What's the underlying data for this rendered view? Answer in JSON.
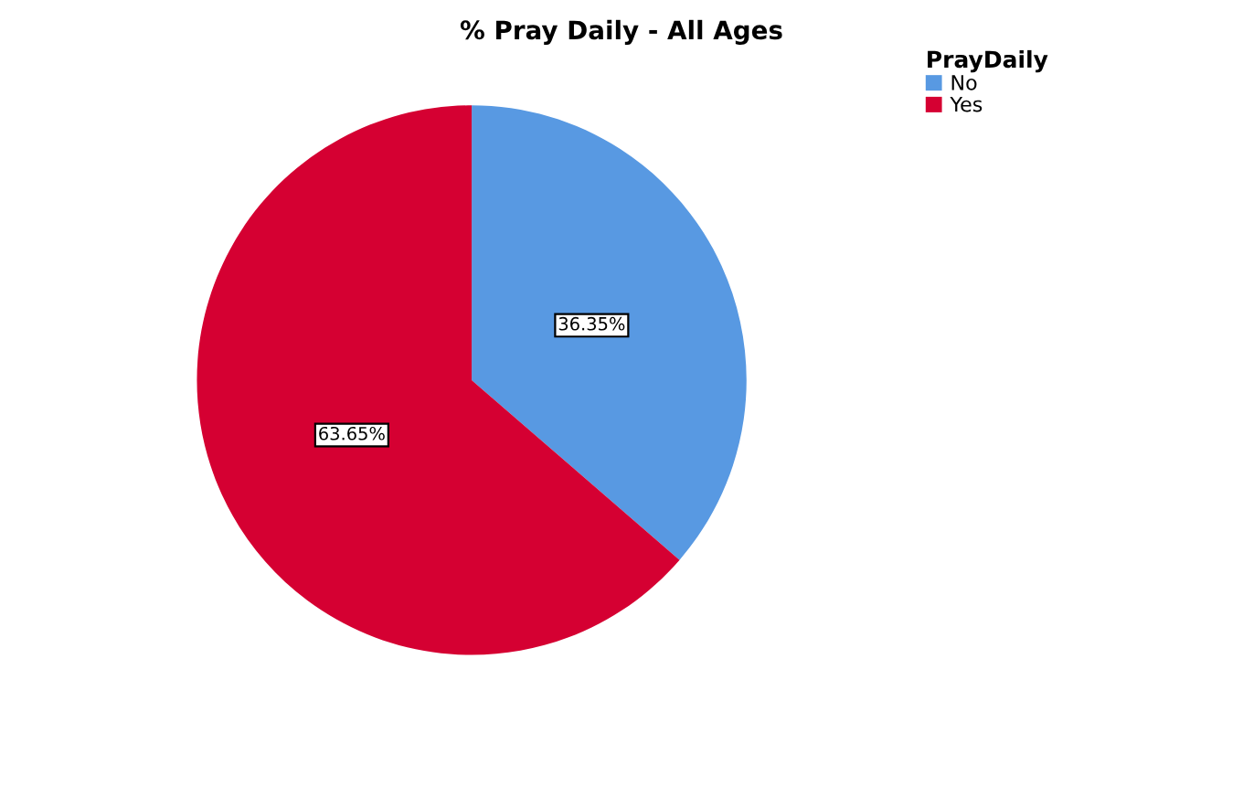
{
  "chart_data": {
    "type": "pie",
    "title": "% Pray Daily - All Ages",
    "legend_title": "PrayDaily",
    "categories": [
      "No",
      "Yes"
    ],
    "values": [
      36.35,
      63.65
    ],
    "colors": [
      "#5899e2",
      "#d50032"
    ],
    "value_labels": [
      "36.35%",
      "63.65%"
    ],
    "legend": "top right"
  }
}
